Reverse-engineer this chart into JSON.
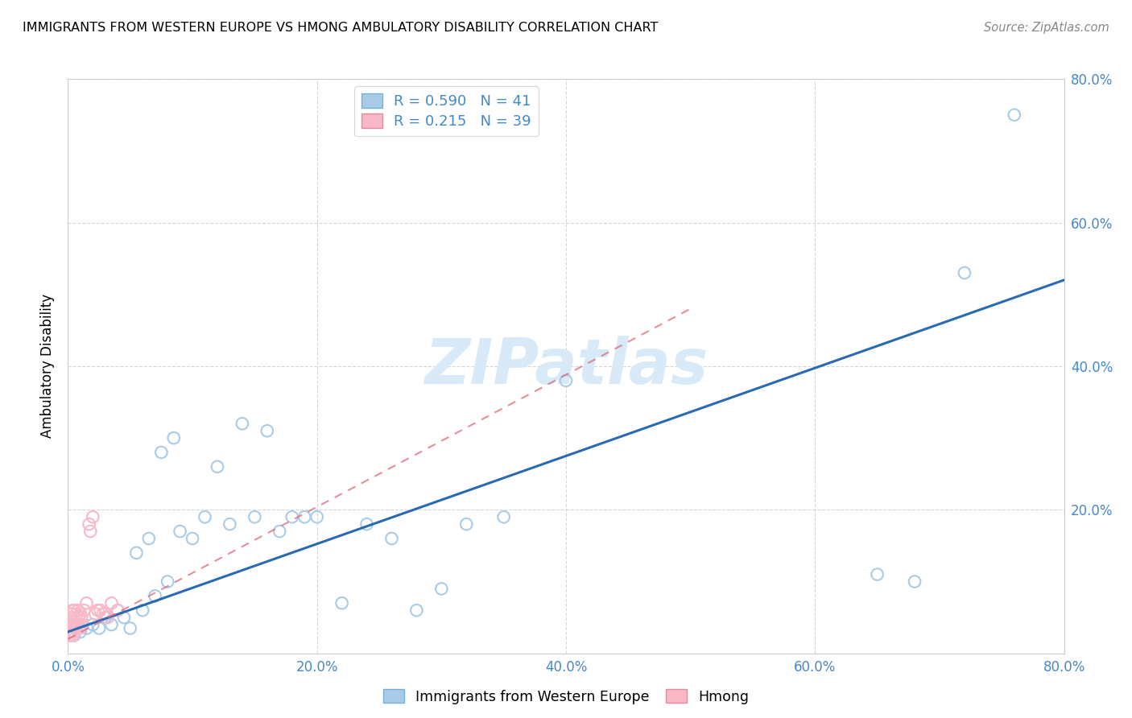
{
  "title": "IMMIGRANTS FROM WESTERN EUROPE VS HMONG AMBULATORY DISABILITY CORRELATION CHART",
  "source": "Source: ZipAtlas.com",
  "ylabel": "Ambulatory Disability",
  "legend_r1": "R = 0.590",
  "legend_n1": "N = 41",
  "legend_r2": "R = 0.215",
  "legend_n2": "N = 39",
  "legend_label1": "Immigrants from Western Europe",
  "legend_label2": "Hmong",
  "xlim": [
    0.0,
    0.8
  ],
  "ylim": [
    0.0,
    0.8
  ],
  "xticks": [
    0.0,
    0.2,
    0.4,
    0.6,
    0.8
  ],
  "yticks": [
    0.2,
    0.4,
    0.6,
    0.8
  ],
  "xticklabels": [
    "0.0%",
    "20.0%",
    "40.0%",
    "60.0%",
    "80.0%"
  ],
  "yticklabels": [
    "20.0%",
    "40.0%",
    "60.0%",
    "80.0%"
  ],
  "blue_color": "#a8cce8",
  "blue_edge_color": "#7aafd4",
  "blue_line_color": "#2a6ab0",
  "pink_color": "#f8b8c8",
  "pink_edge_color": "#e888a0",
  "pink_line_color": "#e06878",
  "tick_color": "#4488cc",
  "watermark": "ZIPatlas",
  "blue_scatter_x": [
    0.005,
    0.01,
    0.015,
    0.02,
    0.025,
    0.03,
    0.035,
    0.04,
    0.045,
    0.05,
    0.055,
    0.06,
    0.065,
    0.07,
    0.075,
    0.08,
    0.085,
    0.09,
    0.1,
    0.11,
    0.12,
    0.13,
    0.14,
    0.15,
    0.16,
    0.17,
    0.18,
    0.19,
    0.2,
    0.22,
    0.24,
    0.26,
    0.28,
    0.3,
    0.32,
    0.35,
    0.4,
    0.65,
    0.68,
    0.72,
    0.76
  ],
  "blue_scatter_y": [
    0.025,
    0.03,
    0.035,
    0.04,
    0.035,
    0.05,
    0.04,
    0.06,
    0.05,
    0.035,
    0.14,
    0.06,
    0.16,
    0.08,
    0.28,
    0.1,
    0.3,
    0.17,
    0.16,
    0.19,
    0.26,
    0.18,
    0.32,
    0.19,
    0.31,
    0.17,
    0.19,
    0.19,
    0.19,
    0.07,
    0.18,
    0.16,
    0.06,
    0.09,
    0.18,
    0.19,
    0.38,
    0.11,
    0.1,
    0.53,
    0.75
  ],
  "pink_scatter_x": [
    0.001,
    0.001,
    0.001,
    0.002,
    0.002,
    0.002,
    0.003,
    0.003,
    0.003,
    0.004,
    0.004,
    0.004,
    0.005,
    0.005,
    0.005,
    0.006,
    0.006,
    0.007,
    0.007,
    0.008,
    0.008,
    0.009,
    0.01,
    0.01,
    0.011,
    0.012,
    0.013,
    0.015,
    0.017,
    0.018,
    0.02,
    0.022,
    0.024,
    0.026,
    0.028,
    0.03,
    0.032,
    0.035,
    0.04
  ],
  "pink_scatter_y": [
    0.025,
    0.03,
    0.04,
    0.025,
    0.035,
    0.05,
    0.03,
    0.04,
    0.055,
    0.025,
    0.04,
    0.06,
    0.03,
    0.045,
    0.06,
    0.035,
    0.05,
    0.035,
    0.055,
    0.04,
    0.06,
    0.05,
    0.035,
    0.055,
    0.05,
    0.04,
    0.06,
    0.07,
    0.18,
    0.17,
    0.19,
    0.055,
    0.06,
    0.06,
    0.055,
    0.055,
    0.05,
    0.07,
    0.06
  ],
  "blue_line_x": [
    0.0,
    0.8
  ],
  "blue_line_y": [
    0.03,
    0.52
  ],
  "pink_line_x": [
    0.0,
    0.5
  ],
  "pink_line_y": [
    0.02,
    0.48
  ]
}
